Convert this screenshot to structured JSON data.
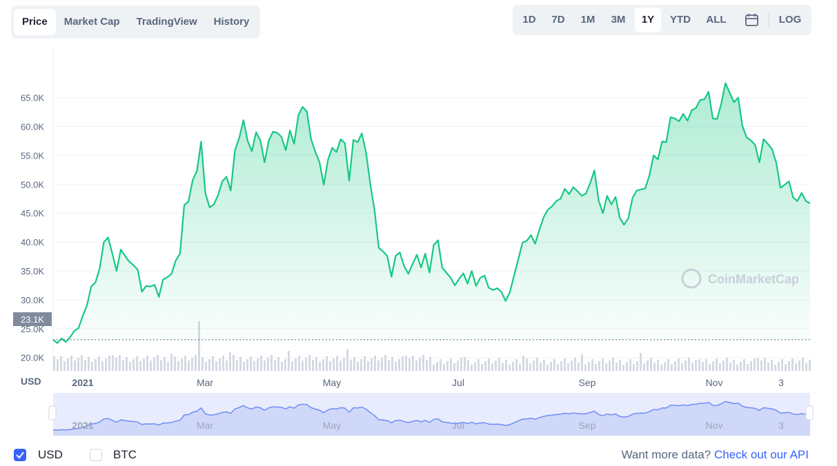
{
  "tabs": [
    {
      "label": "Price",
      "active": true
    },
    {
      "label": "Market Cap",
      "active": false
    },
    {
      "label": "TradingView",
      "active": false
    },
    {
      "label": "History",
      "active": false
    }
  ],
  "ranges": [
    {
      "label": "1D",
      "active": false
    },
    {
      "label": "7D",
      "active": false
    },
    {
      "label": "1M",
      "active": false
    },
    {
      "label": "3M",
      "active": false
    },
    {
      "label": "1Y",
      "active": true
    },
    {
      "label": "YTD",
      "active": false
    },
    {
      "label": "ALL",
      "active": false
    }
  ],
  "calendar_icon": "calendar-icon",
  "log_label": "LOG",
  "watermark": "CoinMarketCap",
  "currency_label": "USD",
  "start_marker": "23.1K",
  "footer": {
    "usd_label": "USD",
    "usd_checked": true,
    "btc_label": "BTC",
    "btc_checked": false,
    "more_text": "Want more data?",
    "api_link": "Check out our API"
  },
  "colors": {
    "line": "#16c784",
    "accent": "#3861fb",
    "navigator": "#6f8cf5"
  },
  "chart_data": {
    "type": "area",
    "ylabel": "USD",
    "y_ticks": [
      "20.0K",
      "25.0K",
      "30.0K",
      "35.0K",
      "40.0K",
      "45.0K",
      "50.0K",
      "55.0K",
      "60.0K",
      "65.0K"
    ],
    "ylim": [
      16000,
      68000
    ],
    "x_ticks": [
      "2021",
      "Mar",
      "May",
      "Jul",
      "Sep",
      "Nov",
      "3"
    ],
    "grid": true,
    "series": [
      {
        "values": [
          23100,
          22500,
          23300,
          22700,
          23500,
          24600,
          25100,
          27200,
          29000,
          32300,
          33000,
          35400,
          40000,
          40800,
          38000,
          35000,
          38700,
          37600,
          36600,
          36000,
          35200,
          31400,
          32400,
          32300,
          32600,
          30500,
          33500,
          33900,
          34500,
          36800,
          38000,
          46400,
          47000,
          50700,
          52300,
          57400,
          48500,
          46000,
          46500,
          48100,
          50500,
          51300,
          48900,
          55900,
          58000,
          61100,
          57500,
          55700,
          59000,
          57600,
          53800,
          57600,
          59100,
          58900,
          58200,
          55900,
          59300,
          57000,
          62000,
          63400,
          62600,
          57800,
          55600,
          53800,
          49900,
          54300,
          56300,
          55600,
          57800,
          57100,
          50600,
          57700,
          57300,
          58800,
          55500,
          50100,
          45500,
          39000,
          38400,
          37600,
          34000,
          37600,
          38200,
          35800,
          34500,
          36200,
          37800,
          35600,
          38000,
          34700,
          39500,
          40300,
          35600,
          34700,
          33800,
          32500,
          33600,
          34600,
          32800,
          35000,
          32400,
          33800,
          34200,
          32100,
          31700,
          32000,
          31400,
          29800,
          31300,
          34200,
          37000,
          39900,
          40200,
          41200,
          39700,
          42200,
          44300,
          45600,
          46200,
          47100,
          47500,
          49200,
          48300,
          49500,
          48800,
          48000,
          48400,
          50200,
          52400,
          47200,
          45000,
          48000,
          46500,
          47800,
          44200,
          43000,
          44100,
          47600,
          48900,
          49100,
          49300,
          51500,
          55000,
          54300,
          57400,
          57300,
          61600,
          61400,
          60900,
          62200,
          61000,
          62800,
          63200,
          64600,
          64700,
          66000,
          61400,
          61300,
          64000,
          67500,
          65800,
          64200,
          65000,
          60100,
          58100,
          57600,
          56800,
          53800,
          57800,
          57000,
          56100,
          53700,
          49400,
          49900,
          50500,
          47700,
          47100,
          48500,
          47100,
          46700
        ]
      }
    ]
  }
}
